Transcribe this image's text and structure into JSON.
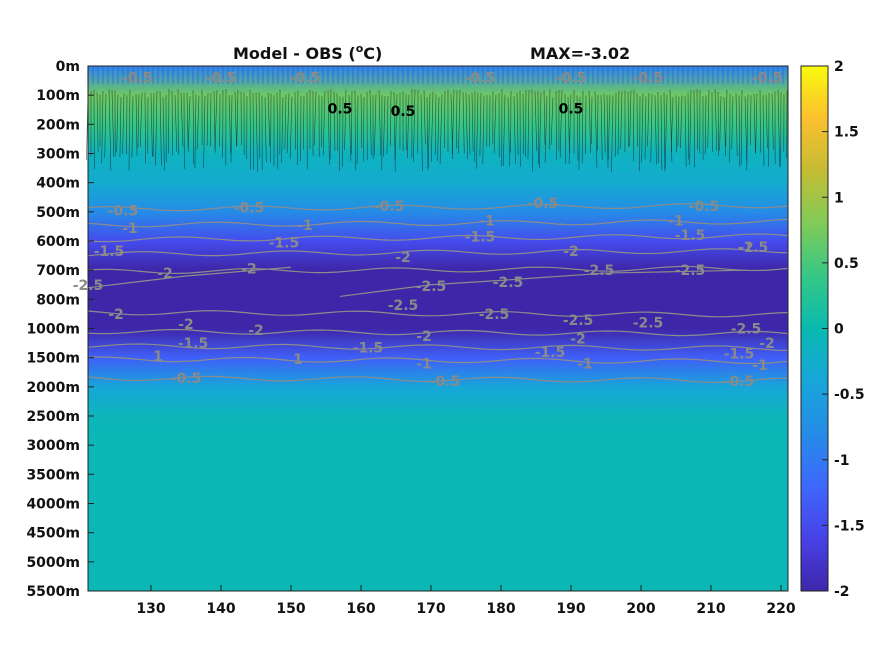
{
  "chart_data": {
    "type": "heatmap",
    "title": "Model - OBS (",
    "title_sup": "o",
    "title_end": "C)",
    "max_label": "MAX=-3.02",
    "x_ticks": [
      130,
      140,
      150,
      160,
      170,
      180,
      190,
      200,
      210,
      220
    ],
    "xlim": [
      121,
      221
    ],
    "y_ticks": [
      "0m",
      "100m",
      "200m",
      "300m",
      "400m",
      "500m",
      "600m",
      "700m",
      "800m",
      "1000m",
      "1500m",
      "2000m",
      "2500m",
      "3000m",
      "3500m",
      "4000m",
      "4500m",
      "5000m",
      "5500m"
    ],
    "colorbar": {
      "ticks": [
        "2",
        "1.5",
        "1",
        "0.5",
        "0",
        "-0.5",
        "-1",
        "-1.5",
        "-2"
      ],
      "clim": [
        -2,
        2
      ]
    },
    "depth_profile": [
      {
        "depth": "0m",
        "value": -0.9
      },
      {
        "depth": "100m",
        "value": 0.7
      },
      {
        "depth": "200m",
        "value": 0.4
      },
      {
        "depth": "300m",
        "value": -0.15
      },
      {
        "depth": "400m",
        "value": -0.3
      },
      {
        "depth": "500m",
        "value": -0.8
      },
      {
        "depth": "600m",
        "value": -1.5
      },
      {
        "depth": "700m",
        "value": -2.0
      },
      {
        "depth": "800m",
        "value": -2.1
      },
      {
        "depth": "1000m",
        "value": -2.0
      },
      {
        "depth": "1500m",
        "value": -1.3
      },
      {
        "depth": "2000m",
        "value": -0.4
      },
      {
        "depth": "2500m",
        "value": -0.1
      },
      {
        "depth": "3000m",
        "value": -0.05
      },
      {
        "depth": "5500m",
        "value": -0.05
      }
    ],
    "contour_labels": [
      {
        "text": "-0.5",
        "x": 128,
        "depth": 0.4
      },
      {
        "text": "-0.5",
        "x": 140,
        "depth": 0.4
      },
      {
        "text": "-0.5",
        "x": 152,
        "depth": 0.4
      },
      {
        "text": "-0.5",
        "x": 177,
        "depth": 0.4
      },
      {
        "text": "-0.5",
        "x": 190,
        "depth": 0.4
      },
      {
        "text": "-0.5",
        "x": 201,
        "depth": 0.4
      },
      {
        "text": "-0.5",
        "x": 218,
        "depth": 0.4
      },
      {
        "text": "0.5",
        "x": 157,
        "depth": 1.45
      },
      {
        "text": "0.5",
        "x": 166,
        "depth": 1.55
      },
      {
        "text": "0.5",
        "x": 190,
        "depth": 1.45
      },
      {
        "text": "-0.5",
        "x": 126,
        "depth": 4.95
      },
      {
        "text": "-0.5",
        "x": 144,
        "depth": 4.85
      },
      {
        "text": "-0.5",
        "x": 164,
        "depth": 4.8
      },
      {
        "text": "-0.5",
        "x": 186,
        "depth": 4.7
      },
      {
        "text": "-0.5",
        "x": 209,
        "depth": 4.8
      },
      {
        "text": "-1",
        "x": 127,
        "depth": 5.55
      },
      {
        "text": "-1",
        "x": 152,
        "depth": 5.45
      },
      {
        "text": "-1",
        "x": 178,
        "depth": 5.3
      },
      {
        "text": "-1",
        "x": 205,
        "depth": 5.3
      },
      {
        "text": "-1.5",
        "x": 124,
        "depth": 6.35
      },
      {
        "text": "-1.5",
        "x": 149,
        "depth": 6.05
      },
      {
        "text": "-1.5",
        "x": 177,
        "depth": 5.85
      },
      {
        "text": "-1.5",
        "x": 207,
        "depth": 5.8
      },
      {
        "text": "-1.5",
        "x": 216,
        "depth": 6.2
      },
      {
        "text": "-2",
        "x": 132,
        "depth": 7.1
      },
      {
        "text": "-2",
        "x": 144,
        "depth": 6.95
      },
      {
        "text": "-2",
        "x": 166,
        "depth": 6.55
      },
      {
        "text": "-2",
        "x": 190,
        "depth": 6.35
      },
      {
        "text": "-2",
        "x": 215,
        "depth": 6.2
      },
      {
        "text": "-2.5",
        "x": 121,
        "depth": 7.5
      },
      {
        "text": "-2.5",
        "x": 170,
        "depth": 7.55
      },
      {
        "text": "-2.5",
        "x": 181,
        "depth": 7.4
      },
      {
        "text": "-2.5",
        "x": 194,
        "depth": 7.0
      },
      {
        "text": "-2.5",
        "x": 207,
        "depth": 7.0
      },
      {
        "text": "-2",
        "x": 125,
        "depth": 8.5
      },
      {
        "text": "-2.5",
        "x": 166,
        "depth": 8.2
      },
      {
        "text": "-2.5",
        "x": 179,
        "depth": 8.5
      },
      {
        "text": "-2.5",
        "x": 191,
        "depth": 8.7
      },
      {
        "text": "-2.5",
        "x": 201,
        "depth": 8.8
      },
      {
        "text": "-2.5",
        "x": 215,
        "depth": 9.0
      },
      {
        "text": "-2",
        "x": 135,
        "depth": 8.85
      },
      {
        "text": "-2",
        "x": 145,
        "depth": 9.05
      },
      {
        "text": "-2",
        "x": 169,
        "depth": 9.25
      },
      {
        "text": "-2",
        "x": 191,
        "depth": 9.35
      },
      {
        "text": "-2",
        "x": 218,
        "depth": 9.5
      },
      {
        "text": "-1.5",
        "x": 136,
        "depth": 9.5
      },
      {
        "text": "-1.5",
        "x": 161,
        "depth": 9.65
      },
      {
        "text": "-1.5",
        "x": 187,
        "depth": 9.8
      },
      {
        "text": "-1.5",
        "x": 214,
        "depth": 9.85
      },
      {
        "text": "1",
        "x": 131,
        "depth": 9.95
      },
      {
        "text": "1",
        "x": 151,
        "depth": 10.05
      },
      {
        "text": "-1",
        "x": 169,
        "depth": 10.2
      },
      {
        "text": "-1",
        "x": 192,
        "depth": 10.2
      },
      {
        "text": "-1",
        "x": 217,
        "depth": 10.25
      },
      {
        "text": "-0.5",
        "x": 135,
        "depth": 10.7
      },
      {
        "text": "-0.5",
        "x": 172,
        "depth": 10.8
      },
      {
        "text": "-0.5",
        "x": 214,
        "depth": 10.8
      }
    ]
  }
}
